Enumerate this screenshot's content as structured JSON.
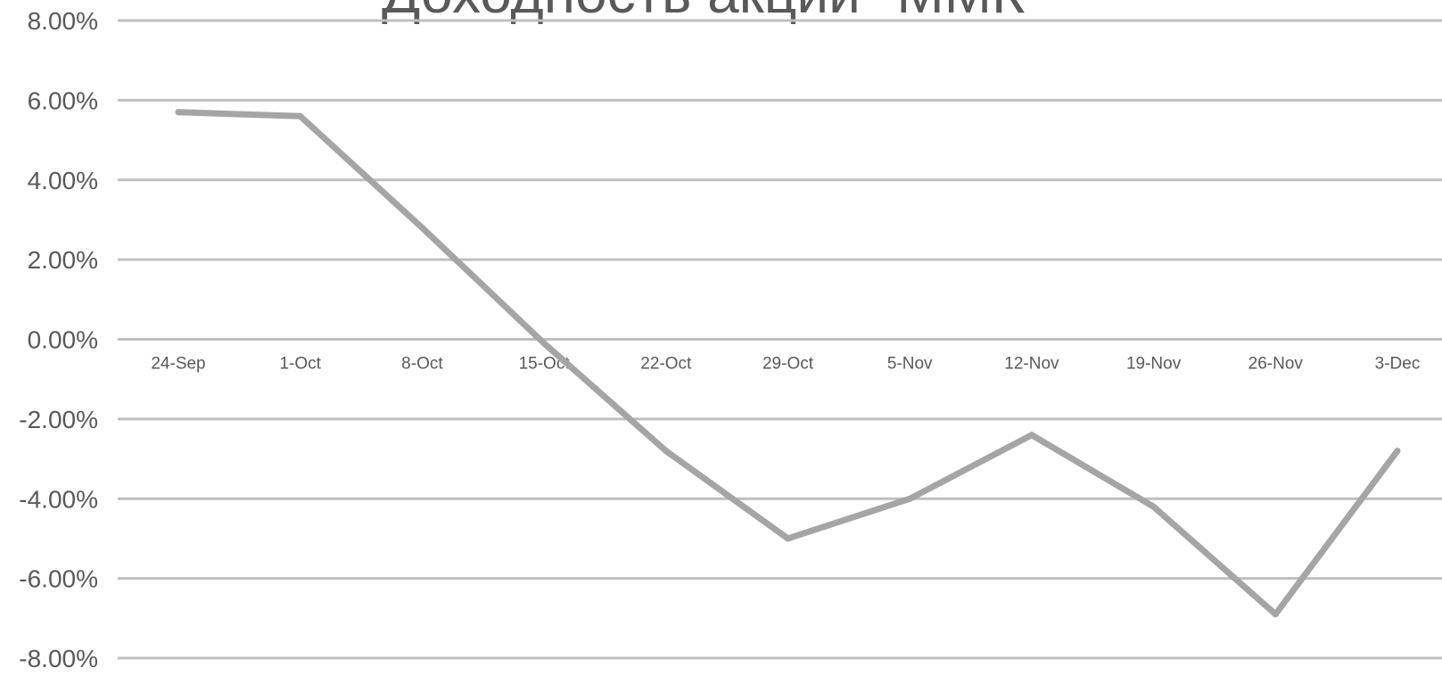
{
  "chart_data": {
    "type": "line",
    "title": "Доходность акций \"ММК\"",
    "xlabel": "",
    "ylabel": "",
    "categories": [
      "24-Sep",
      "1-Oct",
      "8-Oct",
      "15-Oct",
      "22-Oct",
      "29-Oct",
      "5-Nov",
      "12-Nov",
      "19-Nov",
      "26-Nov",
      "3-Dec"
    ],
    "series": [
      {
        "values": [
          5.7,
          5.6,
          2.8,
          -0.1,
          -2.8,
          -5.0,
          -4.0,
          -2.4,
          -4.2,
          -6.9,
          -2.8
        ]
      }
    ],
    "ylim": [
      -8,
      8
    ],
    "y_ticks": [
      "8.00%",
      "6.00%",
      "4.00%",
      "2.00%",
      "0.00%",
      "-2.00%",
      "-4.00%",
      "-6.00%",
      "-8.00%"
    ],
    "grid": true,
    "legend": "none",
    "colors": {
      "series": "#a5a5a5",
      "grid": "#bfbfbf",
      "text": "#595959"
    }
  }
}
